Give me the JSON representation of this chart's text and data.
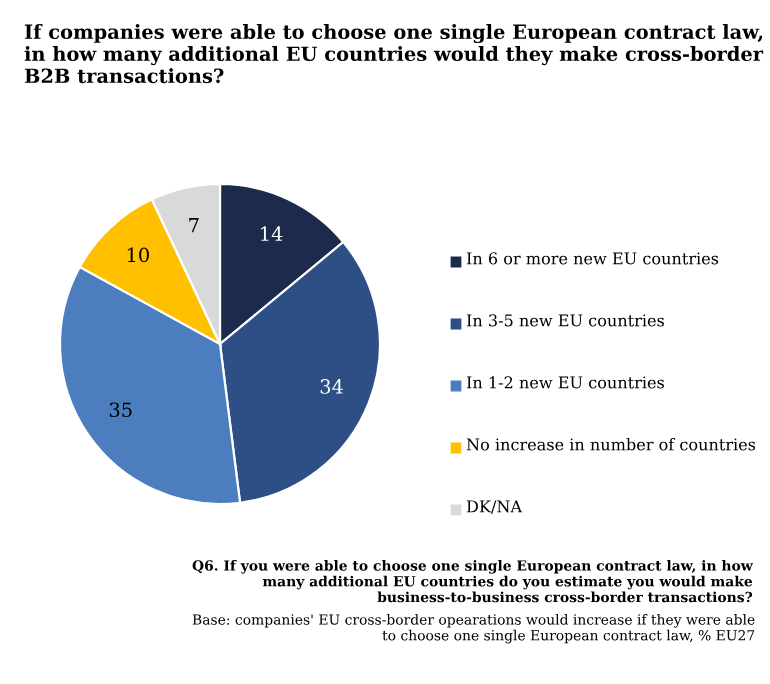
{
  "chart_data": {
    "type": "pie",
    "title": "If companies were able to choose one single European contract law, in how many additional EU countries would they make cross-border B2B transactions?",
    "categories": [
      "In 6 or more new EU countries",
      "In 3-5 new EU countries",
      "In 1-2 new EU countries",
      "No increase in number of countries",
      "DK/NA"
    ],
    "values": [
      14,
      34,
      35,
      10,
      7
    ],
    "colors": [
      "#1c2b4b",
      "#2d4f86",
      "#4b7dbf",
      "#ffc000",
      "#d9d9d9"
    ],
    "data_labels": true,
    "legend": "right",
    "annotations": [
      "Q6. If you were able to choose one single European contract law, in how many additional EU countries do you estimate you would make business-to-business cross-border transactions?",
      "Base: companies' EU cross-border opearations would increase if they were able to choose one single European contract law, % EU27"
    ]
  }
}
